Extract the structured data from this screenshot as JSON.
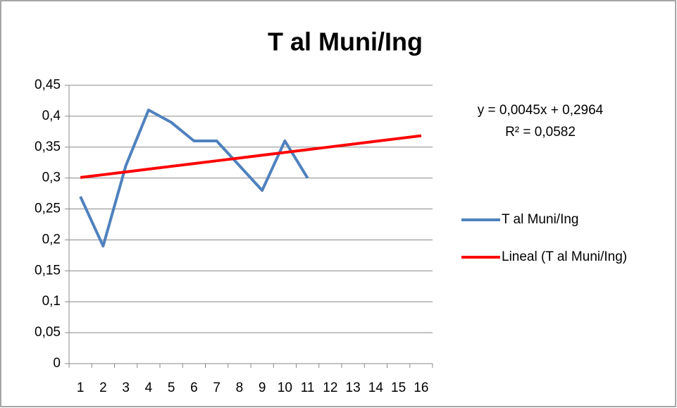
{
  "chart_data": {
    "type": "line",
    "title": "T al Muni/Ing",
    "categories": [
      "1",
      "2",
      "3",
      "4",
      "5",
      "6",
      "7",
      "8",
      "9",
      "10",
      "11",
      "12",
      "13",
      "14",
      "15",
      "16"
    ],
    "series": [
      {
        "name": "T al Muni/Ing",
        "color": "#4f81bd",
        "values": [
          0.27,
          0.19,
          0.32,
          0.41,
          0.39,
          0.36,
          0.36,
          0.32,
          0.28,
          0.36,
          0.3,
          null,
          null,
          null,
          null,
          null
        ]
      },
      {
        "name": "Lineal (T al Muni/Ing)",
        "color": "#ff0000",
        "values": [
          0.3009,
          0.3054,
          0.3099,
          0.3144,
          0.3189,
          0.3234,
          0.3279,
          0.3324,
          0.3369,
          0.3414,
          0.3459,
          0.3504,
          0.3549,
          0.3594,
          0.3639,
          0.3684
        ]
      }
    ],
    "ylim": [
      0,
      0.45
    ],
    "yticks": [
      0,
      {
        "value": 0.05,
        "label": "0,05"
      },
      {
        "value": 0.1,
        "label": "0,1"
      },
      {
        "value": 0.15,
        "label": "0,15"
      },
      {
        "value": 0.2,
        "label": "0,2"
      },
      {
        "value": 0.25,
        "label": "0,25"
      },
      {
        "value": 0.3,
        "label": "0,3"
      },
      {
        "value": 0.35,
        "label": "0,35"
      },
      {
        "value": 0.4,
        "label": "0,4"
      },
      {
        "value": 0.45,
        "label": "0,45"
      }
    ],
    "grid": true,
    "legend": "right",
    "annotations": {
      "equation": "y = 0,0045x + 0,2964",
      "r_squared": "R² = 0,0582"
    }
  }
}
